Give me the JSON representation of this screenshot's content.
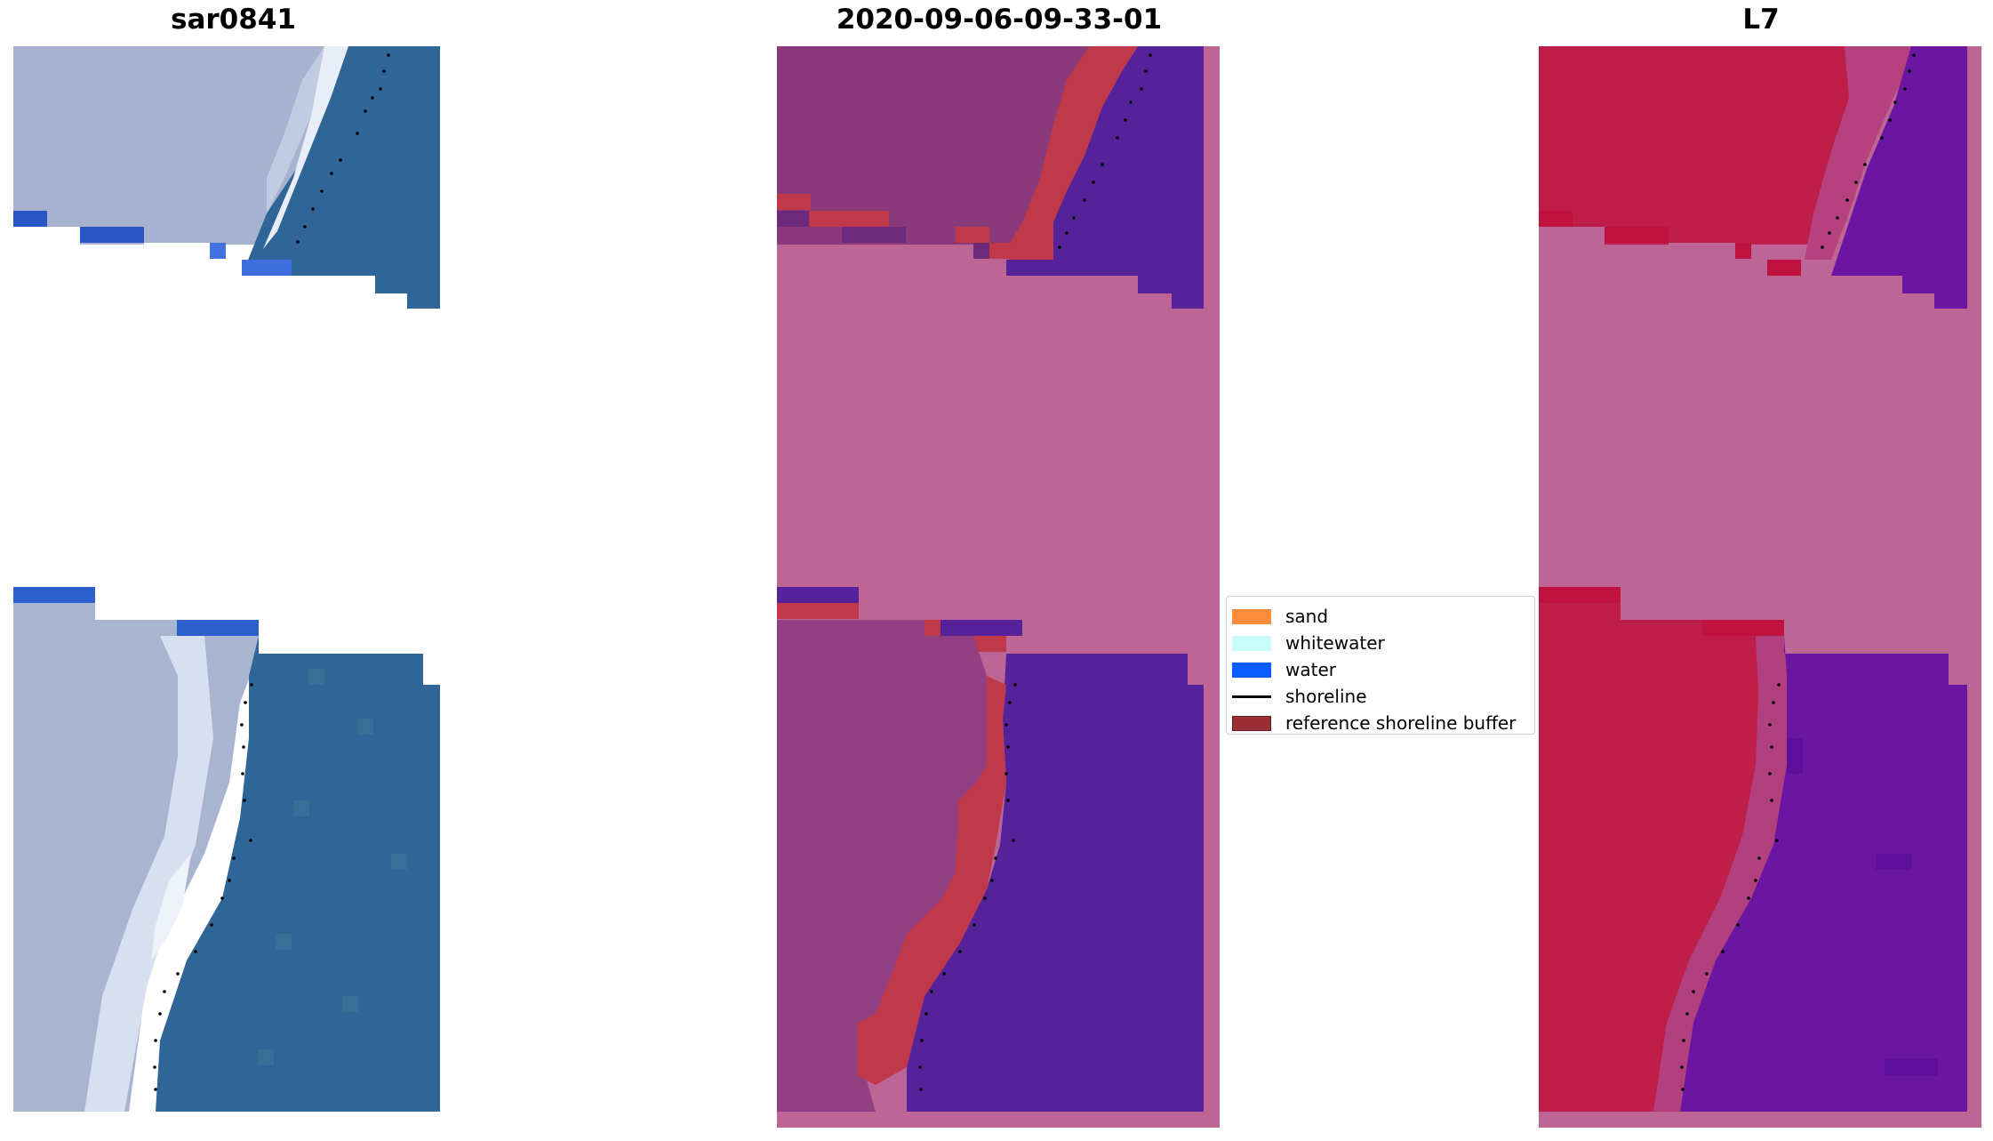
{
  "panels": [
    {
      "title": "sar0841"
    },
    {
      "title": "2020-09-06-09-33-01"
    },
    {
      "title": "L7"
    }
  ],
  "legend": {
    "items": [
      {
        "label": "sand",
        "kind": "patch",
        "color": "#ff8c3a"
      },
      {
        "label": "whitewater",
        "kind": "patch",
        "color": "#c9fbfb"
      },
      {
        "label": "water",
        "kind": "patch",
        "color": "#0b5cff"
      },
      {
        "label": "shoreline",
        "kind": "line",
        "color": "#000000"
      },
      {
        "label": "reference shoreline buffer",
        "kind": "patch",
        "color": "#9a2f35"
      }
    ]
  },
  "colors": {
    "rgb_sand": "#a9b4cf",
    "rgb_water": "#2f6697",
    "rgb_foam": "#e6ecf6",
    "class_land": "#8e3c7a",
    "class_water": "#56229a",
    "class_buffer": "#c0394a",
    "nodata": "#bd6696",
    "l7_land": "#c01e4a",
    "l7_water": "#6a16a0"
  }
}
